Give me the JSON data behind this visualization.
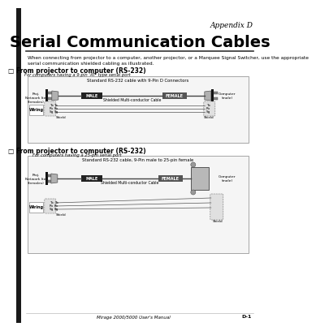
{
  "appendix_label": "Appendix D",
  "title": "Serial Communication Cables",
  "intro_text": "When connecting from projector to a computer, another projector, or a Marquee Signal Switcher, use the appropriate\nserial communication shielded cabling as illustrated.",
  "section1_title": "□ From projector to computer (RS-232)",
  "section1_subtitle": "For computers having a 9-pin 'AT' type serial port",
  "section1_box_title": "Standard RS-232 cable with 9-Pin D Connectors",
  "section2_title": "□ From projector to computer (RS-232)",
  "section2_subtitle": "For computers having a 25-pin serial port",
  "section2_box_title": "Standard RS-232 cable, 9-Pin male to 25-pin female",
  "footer": "Mirage 2000/5000 User's Manual",
  "page": "D-1",
  "bg_color": "#ffffff",
  "text_color": "#000000",
  "dark_bar_color": "#1a1a1a",
  "connector_fill": "#b0b0b0",
  "connector_edge": "#555555",
  "male_fill": "#222222",
  "female_fill": "#555555",
  "cable_color": "#444444",
  "box_edge": "#999999",
  "box_fill": "#f5f5f5",
  "wiring_fill": "#e8e8e8"
}
